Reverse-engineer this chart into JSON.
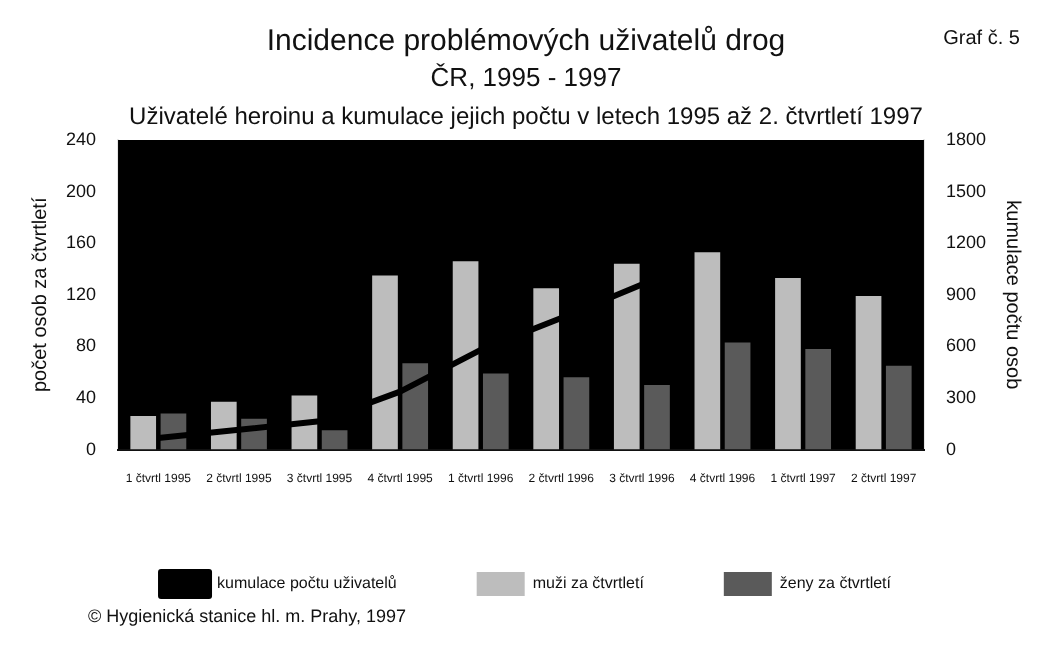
{
  "chart_data": {
    "type": "bar",
    "title": "Incidence problémových uživatelů drog",
    "subtitle": "ČR, 1995 - 1997",
    "annotations": [
      "Uživatelé heroinu a kumulace jejich počtu v letech 1995 až 2. čtvrtletí 1997",
      "Graf č. 5",
      "© Hygienická stanice hl. m. Prahy, 1997"
    ],
    "ylabel": "počet osob za čtvrtletí",
    "y2label": "kumulace počtu osob",
    "categories": [
      "1 čtvrtl 1995",
      "2 čtvrtl 1995",
      "3 čtvrtl 1995",
      "4 čtvrtl 1995",
      "1 čtvrtl 1996",
      "2 čtvrtl 1996",
      "3 čtvrtl 1996",
      "4 čtvrtl 1996",
      "1 čtvrtl 1997",
      "2 čtvrtl 1997"
    ],
    "series": [
      {
        "name": "muži za čtvrtletí",
        "color": "#bdbdbd",
        "values": [
          26,
          37,
          42,
          135,
          146,
          125,
          144,
          153,
          133,
          119
        ]
      },
      {
        "name": "ženy za čtvrtletí",
        "color": "#5a5a5a",
        "values": [
          28,
          24,
          15,
          67,
          59,
          56,
          50,
          83,
          78,
          65
        ]
      },
      {
        "name": "kumulace počtu uživatelů",
        "type": "line",
        "axis": "y2",
        "color": "#000000",
        "values": [
          68,
          115,
          165,
          337,
          580,
          765,
          960,
          null,
          null,
          null
        ]
      }
    ],
    "ylim": [
      0,
      240
    ],
    "yticks": [
      0,
      40,
      80,
      120,
      160,
      200,
      240
    ],
    "y2lim": [
      0,
      1800
    ],
    "y2ticks": [
      0,
      300,
      600,
      900,
      1200,
      1500,
      1800
    ],
    "grid": false,
    "legend": "bottom",
    "marker": "none",
    "line_style": "solid"
  }
}
